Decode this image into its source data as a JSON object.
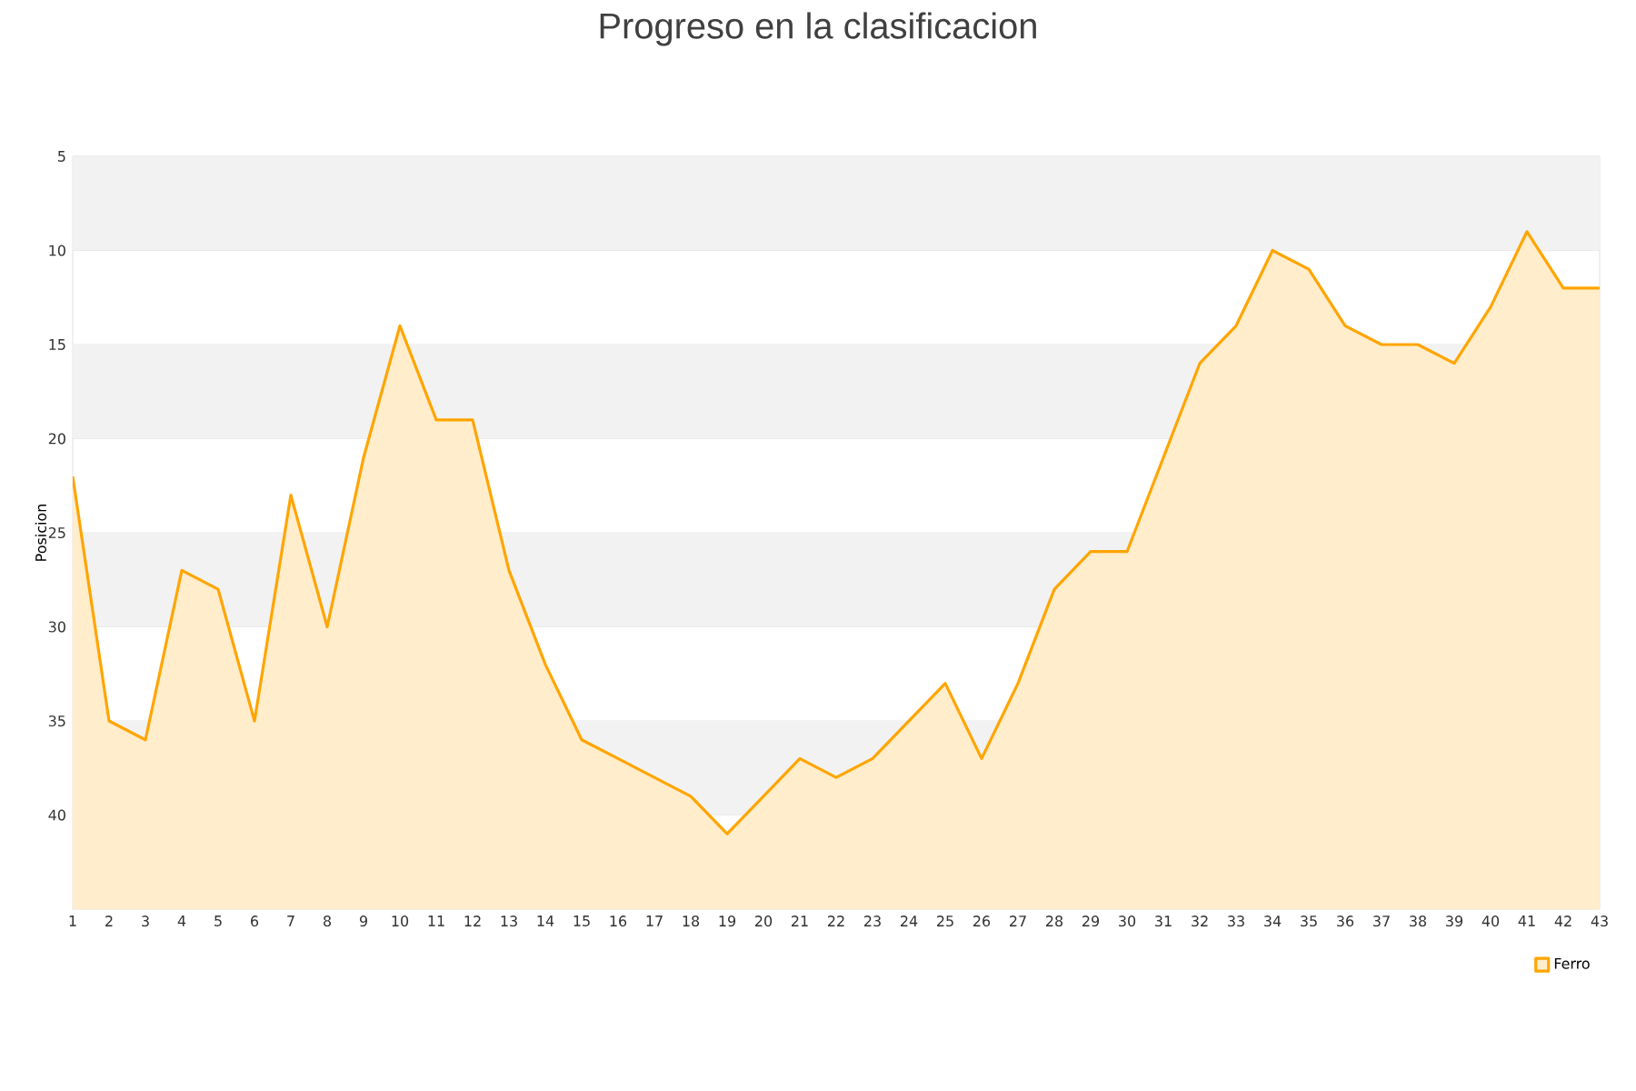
{
  "chart_data": {
    "type": "area",
    "title": "Progreso en la clasificacion",
    "ylabel": "Posicion",
    "categories": [
      "1",
      "2",
      "3",
      "4",
      "5",
      "6",
      "7",
      "8",
      "9",
      "10",
      "11",
      "12",
      "13",
      "14",
      "15",
      "16",
      "17",
      "18",
      "19",
      "20",
      "21",
      "22",
      "23",
      "24",
      "25",
      "26",
      "27",
      "28",
      "29",
      "30",
      "31",
      "32",
      "33",
      "34",
      "35",
      "36",
      "37",
      "38",
      "39",
      "40",
      "41",
      "42",
      "43"
    ],
    "series": [
      {
        "name": "Ferro",
        "color": "#ffa500",
        "values": [
          22,
          35,
          36,
          27,
          28,
          35,
          23,
          30,
          21,
          14,
          19,
          19,
          27,
          32,
          36,
          37,
          38,
          39,
          41,
          39,
          37,
          38,
          37,
          35,
          33,
          37,
          33,
          28,
          26,
          26,
          21,
          16,
          14,
          10,
          11,
          14,
          15,
          15,
          16,
          13,
          9,
          12,
          12
        ]
      }
    ],
    "ylim": [
      45,
      5
    ],
    "yticks": [
      5,
      10,
      15,
      20,
      25,
      30,
      35,
      40
    ],
    "bands": [
      {
        "axis": "y",
        "from": 5,
        "to": 10,
        "color": "#f2f2f2"
      },
      {
        "axis": "y",
        "from": 15,
        "to": 20,
        "color": "#f2f2f2"
      },
      {
        "axis": "y",
        "from": 25,
        "to": 30,
        "color": "#f2f2f2"
      },
      {
        "axis": "y",
        "from": 35,
        "to": 40,
        "color": "#f2f2f2"
      }
    ],
    "grid": "y",
    "legend": "bottom right"
  }
}
